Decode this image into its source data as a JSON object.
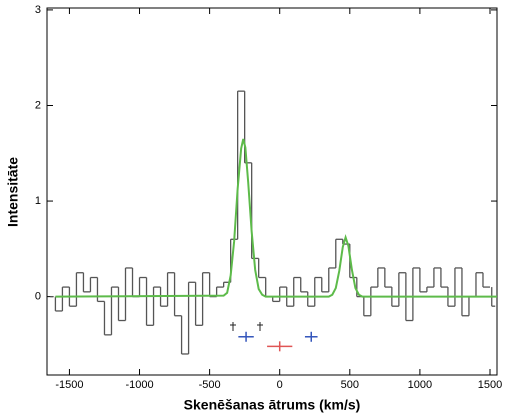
{
  "chart_data": {
    "type": "line",
    "x_label": "Skenēšanas ātrums (km/s)",
    "y_label": "Intensitāte",
    "xlim": [
      -1660,
      1550
    ],
    "ylim": [
      -0.82,
      3.02
    ],
    "xticks": [
      -1500,
      -1000,
      -500,
      0,
      500,
      1000,
      1500
    ],
    "yticks": [
      0,
      1,
      2,
      3
    ],
    "series": [
      {
        "style": "step",
        "color": "#555555",
        "x": [
          -1625,
          -1575,
          -1525,
          -1475,
          -1425,
          -1375,
          -1325,
          -1275,
          -1225,
          -1175,
          -1125,
          -1075,
          -1025,
          -975,
          -925,
          -875,
          -825,
          -775,
          -725,
          -675,
          -625,
          -575,
          -525,
          -475,
          -425,
          -375,
          -325,
          -275,
          -225,
          -175,
          -125,
          -75,
          -25,
          25,
          75,
          125,
          175,
          225,
          275,
          325,
          375,
          425,
          475,
          525,
          575,
          625,
          675,
          725,
          775,
          825,
          875,
          925,
          975,
          1025,
          1075,
          1125,
          1175,
          1225,
          1275,
          1325,
          1375,
          1425,
          1475,
          1525
        ],
        "values": [
          0.0,
          -0.15,
          0.1,
          -0.1,
          0.25,
          0.05,
          0.2,
          -0.05,
          -0.4,
          0.1,
          -0.25,
          0.3,
          0.0,
          0.2,
          -0.3,
          0.1,
          -0.1,
          0.25,
          -0.2,
          -0.6,
          0.15,
          -0.3,
          0.25,
          0.0,
          0.1,
          0.15,
          0.6,
          2.15,
          1.4,
          0.4,
          0.2,
          0.0,
          -0.05,
          0.1,
          -0.1,
          0.2,
          0.05,
          -0.1,
          0.2,
          0.05,
          0.3,
          0.6,
          0.55,
          0.2,
          0.0,
          -0.2,
          0.1,
          0.3,
          0.1,
          -0.1,
          0.25,
          -0.25,
          0.3,
          0.05,
          0.1,
          0.3,
          0.1,
          -0.1,
          0.3,
          -0.2,
          0.0,
          0.25,
          0.1,
          -0.1
        ]
      },
      {
        "style": "smooth",
        "color": "#5dbb4a",
        "x": [
          -1600,
          -400,
          -375,
          -350,
          -325,
          -300,
          -275,
          -260,
          -245,
          -225,
          -200,
          -175,
          -150,
          -125,
          -100,
          350,
          375,
          400,
          425,
          450,
          470,
          490,
          515,
          540,
          565,
          590,
          1550
        ],
        "values": [
          0,
          0.01,
          0.04,
          0.22,
          0.58,
          1.13,
          1.55,
          1.65,
          1.56,
          1.2,
          0.68,
          0.28,
          0.08,
          0.02,
          0,
          0,
          0.02,
          0.09,
          0.27,
          0.52,
          0.62,
          0.53,
          0.28,
          0.09,
          0.02,
          0,
          0
        ]
      }
    ],
    "markers": [
      {
        "x": -240,
        "y": -0.42,
        "xerr": 55,
        "color": "#3355bb"
      },
      {
        "x": 0,
        "y": -0.52,
        "xerr": 90,
        "color": "#e05555"
      },
      {
        "x": 225,
        "y": -0.42,
        "xerr": 45,
        "color": "#3355bb"
      }
    ]
  }
}
